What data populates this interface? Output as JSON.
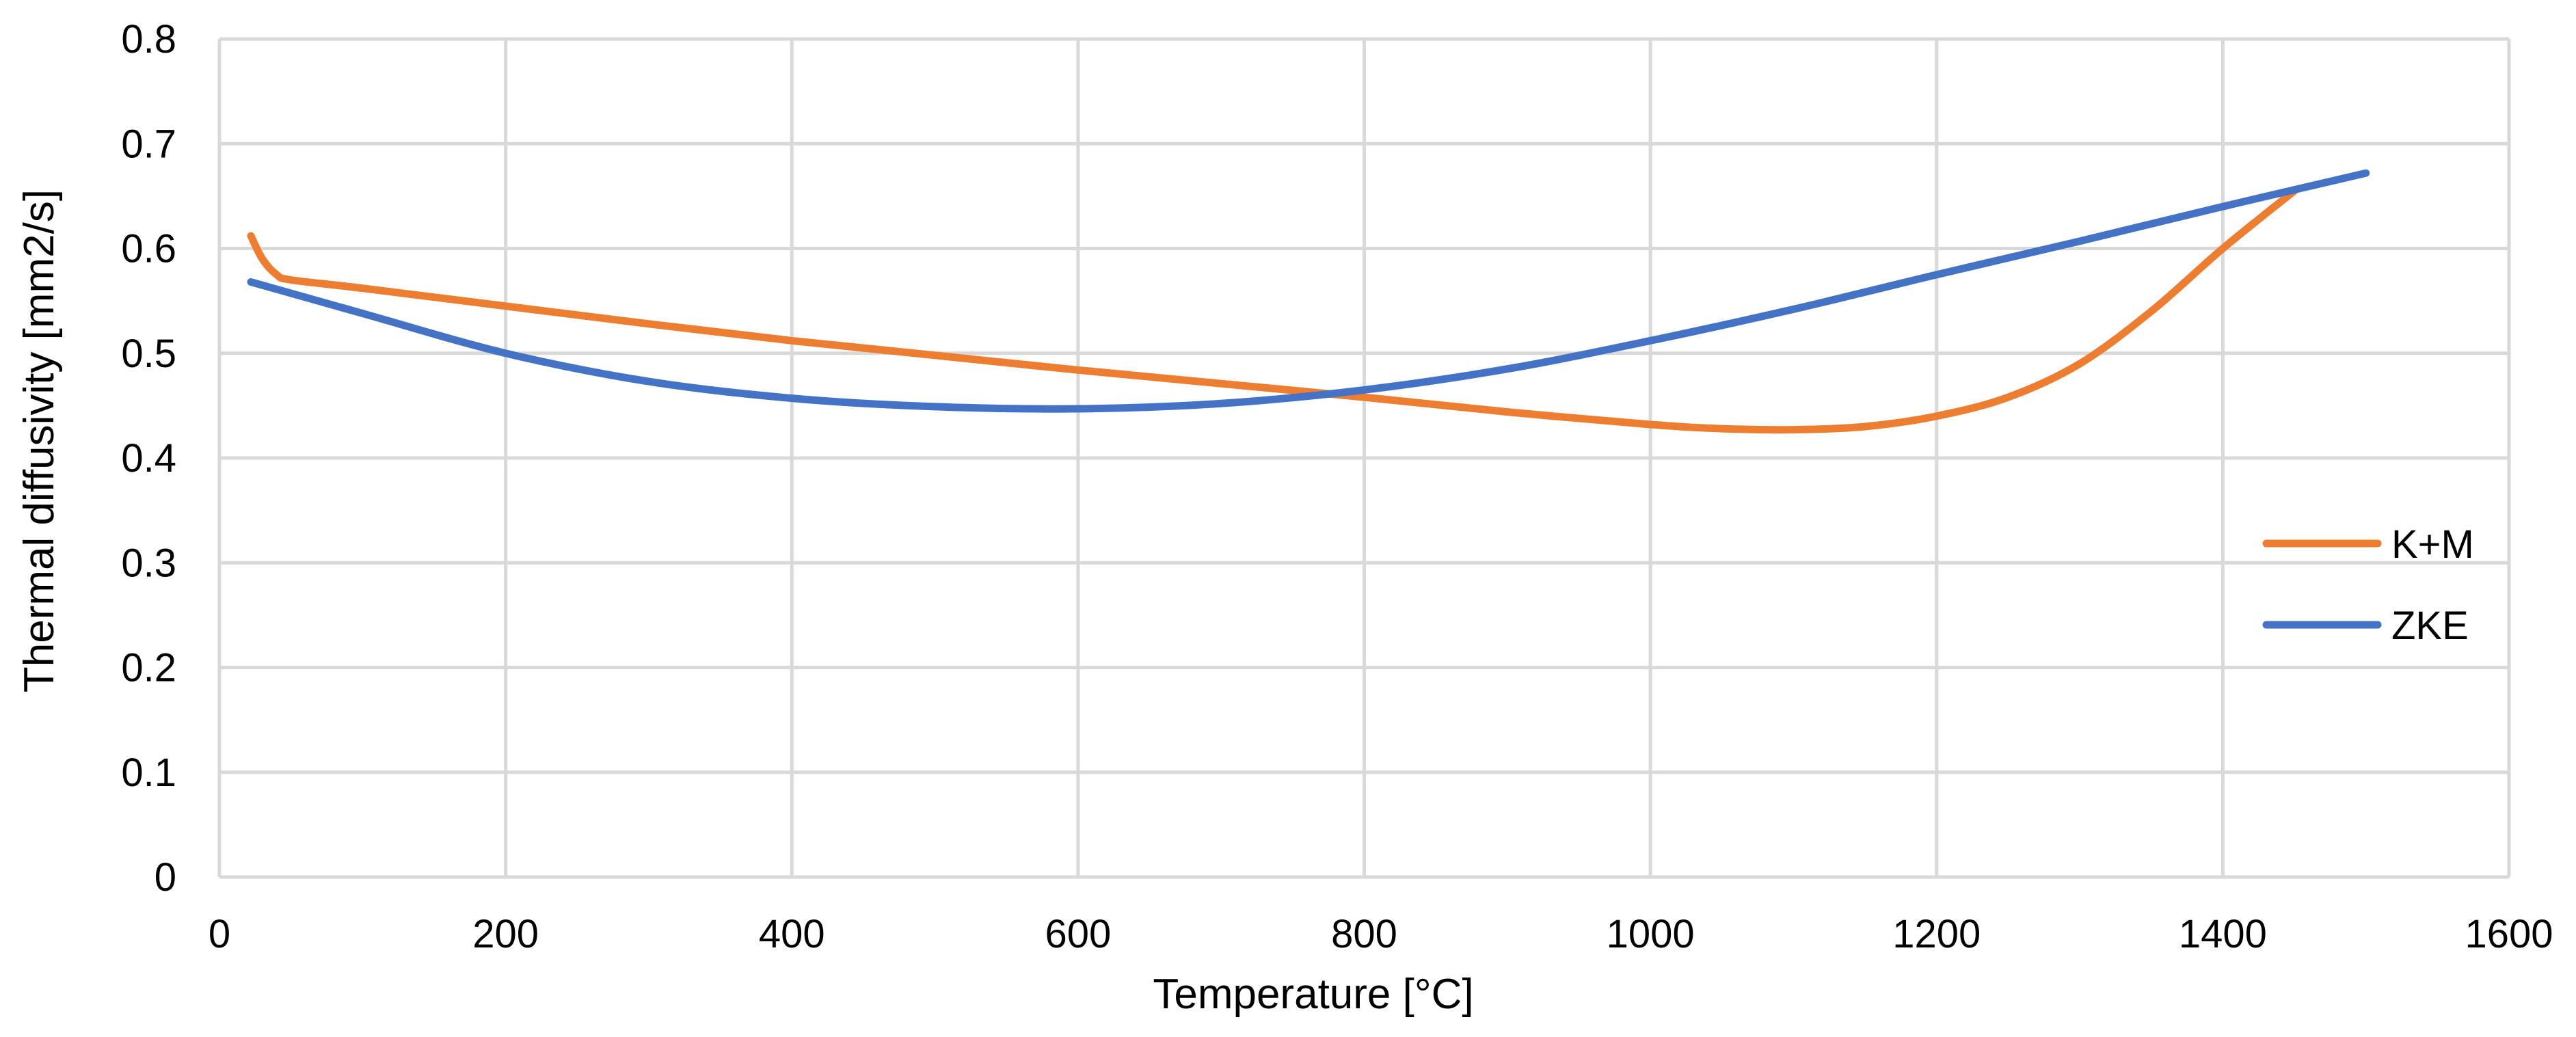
{
  "chart_data": {
    "type": "line",
    "title": "",
    "xlabel": "Temperature [°C]",
    "ylabel": "Thermal diffusivity [mm2/s]",
    "xlim": [
      0,
      1600
    ],
    "ylim": [
      0,
      0.8
    ],
    "x_ticks": [
      0,
      200,
      400,
      600,
      800,
      1000,
      1200,
      1400,
      1600
    ],
    "x_tick_labels": [
      "0",
      "200",
      "400",
      "600",
      "800",
      "1000",
      "1200",
      "1400",
      "1600"
    ],
    "y_ticks": [
      0,
      0.1,
      0.2,
      0.3,
      0.4,
      0.5,
      0.6,
      0.7,
      0.8
    ],
    "y_tick_labels": [
      "0",
      "0.1",
      "0.2",
      "0.3",
      "0.4",
      "0.5",
      "0.6",
      "0.7",
      "0.8"
    ],
    "grid": true,
    "legend_position": "right",
    "series": [
      {
        "name": "K+M",
        "color": "#ed7d31",
        "x": [
          22,
          30,
          40,
          50,
          100,
          200,
          300,
          400,
          500,
          600,
          700,
          800,
          900,
          1000,
          1050,
          1100,
          1150,
          1200,
          1250,
          1300,
          1350,
          1400,
          1450
        ],
        "y": [
          0.612,
          0.59,
          0.575,
          0.57,
          0.562,
          0.545,
          0.528,
          0.512,
          0.498,
          0.484,
          0.471,
          0.458,
          0.444,
          0.432,
          0.428,
          0.427,
          0.43,
          0.44,
          0.458,
          0.49,
          0.54,
          0.6,
          0.655
        ]
      },
      {
        "name": "ZKE",
        "color": "#4472c4",
        "x": [
          22,
          100,
          200,
          300,
          400,
          500,
          600,
          700,
          800,
          900,
          1000,
          1100,
          1200,
          1300,
          1400,
          1500
        ],
        "y": [
          0.568,
          0.538,
          0.5,
          0.473,
          0.457,
          0.449,
          0.447,
          0.452,
          0.465,
          0.485,
          0.512,
          0.542,
          0.575,
          0.607,
          0.64,
          0.672
        ]
      }
    ]
  }
}
